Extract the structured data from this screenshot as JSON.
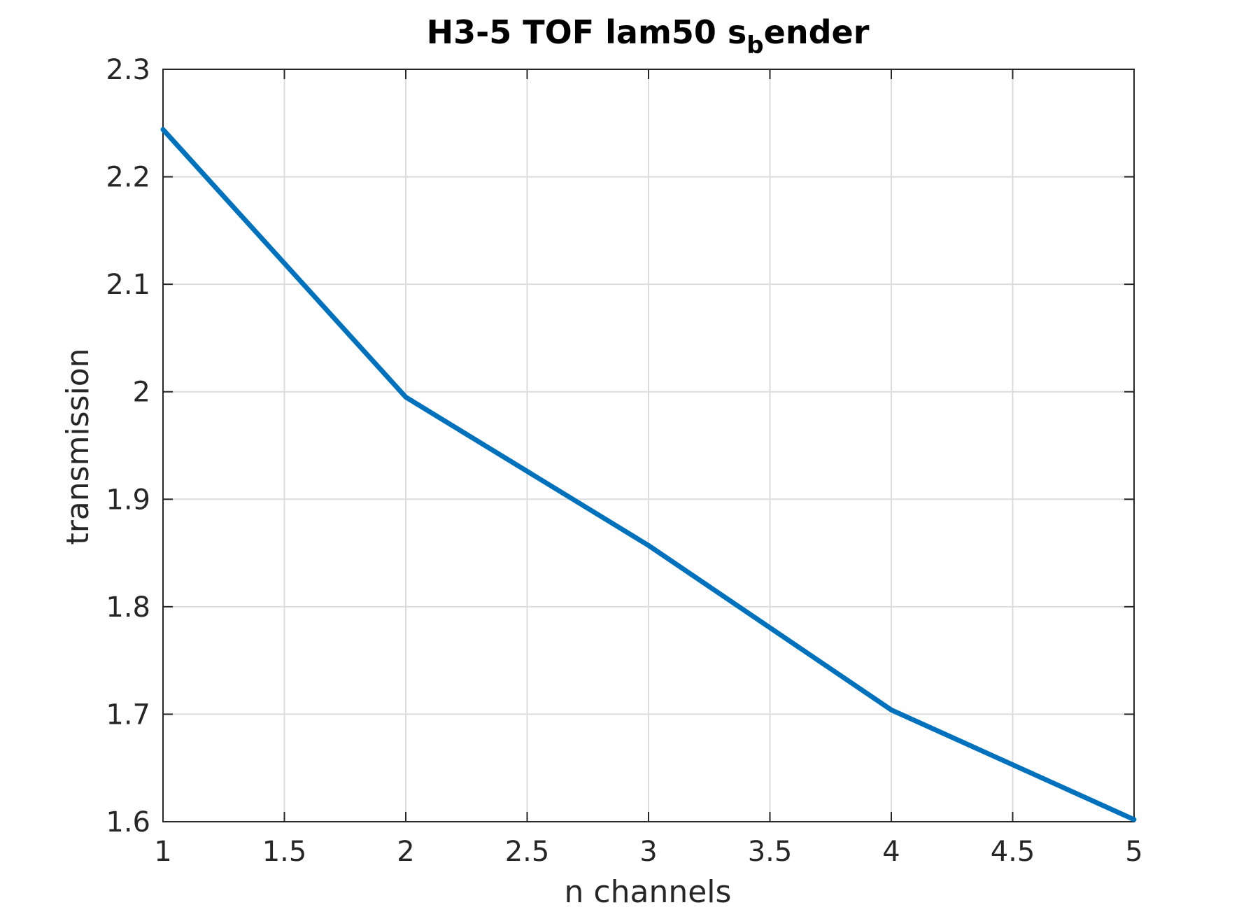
{
  "chart_data": {
    "type": "line",
    "title": {
      "main": "H3-5 TOF lam50 s",
      "subscript": "b",
      "rest": "ender"
    },
    "xlabel": "n channels",
    "ylabel": "transmission",
    "xlim": [
      1,
      5
    ],
    "ylim": [
      1.6,
      2.3
    ],
    "x_ticks": [
      1,
      1.5,
      2,
      2.5,
      3,
      3.5,
      4,
      4.5,
      5
    ],
    "x_tick_labels": [
      "1",
      "1.5",
      "2",
      "2.5",
      "3",
      "3.5",
      "4",
      "4.5",
      "5"
    ],
    "y_ticks": [
      1.6,
      1.7,
      1.8,
      1.9,
      2.0,
      2.1,
      2.2,
      2.3
    ],
    "y_tick_labels": [
      "1.6",
      "1.7",
      "1.8",
      "1.9",
      "2",
      "2.1",
      "2.2",
      "2.3"
    ],
    "grid": true,
    "legend": "none",
    "series": [
      {
        "x": [
          1,
          2,
          3,
          4,
          5
        ],
        "y": [
          2.244,
          1.995,
          1.857,
          1.704,
          1.602
        ],
        "color": "#0072bd"
      }
    ]
  }
}
